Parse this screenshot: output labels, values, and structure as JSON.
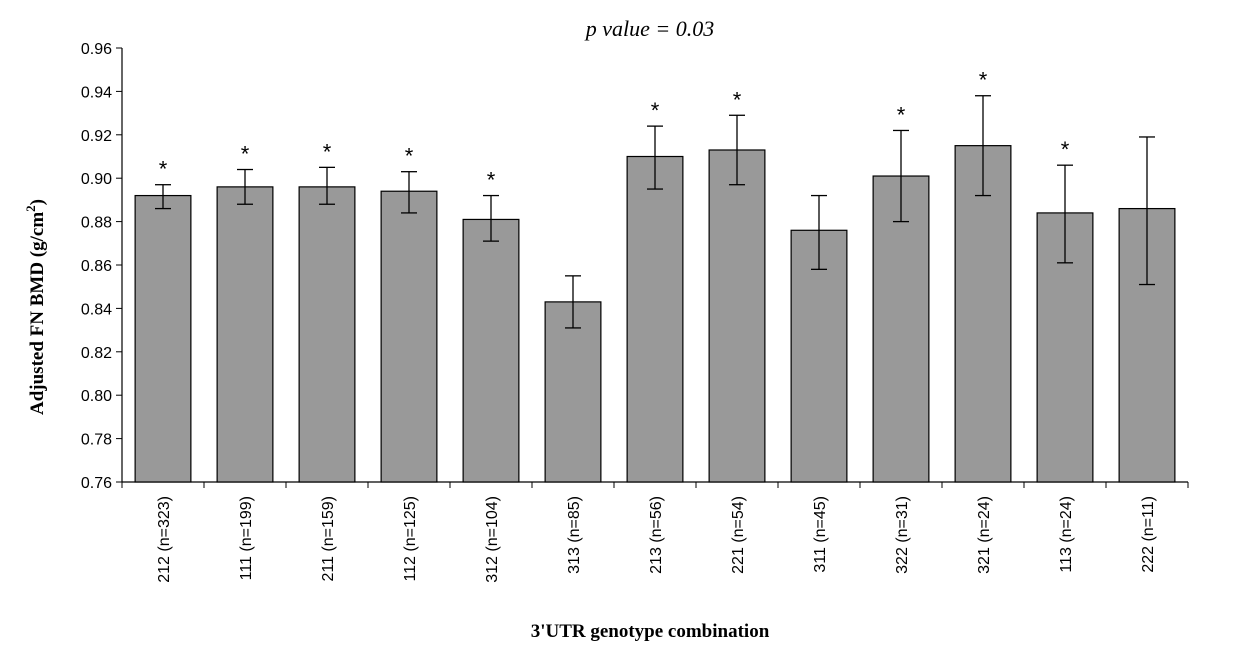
{
  "chart_data": {
    "type": "bar",
    "title": "p value = 0.03",
    "xlabel": "3'UTR genotype combination",
    "ylabel": "Adjusted FN BMD (g/cm",
    "ylabel_sup": "2",
    "ylabel_end": ")",
    "ylim": [
      0.76,
      0.96
    ],
    "yticks": [
      "0.76",
      "0.78",
      "0.80",
      "0.82",
      "0.84",
      "0.86",
      "0.88",
      "0.90",
      "0.92",
      "0.94",
      "0.96"
    ],
    "categories": [
      "212 (n=323)",
      "111 (n=199)",
      "211 (n=159)",
      "112 (n=125)",
      "312 (n=104)",
      "313 (n=85)",
      "213 (n=56)",
      "221 (n=54)",
      "311 (n=45)",
      "322 (n=31)",
      "321 (n=24)",
      "113 (n=24)",
      "222 (n=11)"
    ],
    "values": [
      0.892,
      0.896,
      0.896,
      0.894,
      0.881,
      0.843,
      0.91,
      0.913,
      0.876,
      0.901,
      0.915,
      0.884,
      0.886
    ],
    "error_low": [
      0.886,
      0.888,
      0.888,
      0.884,
      0.871,
      0.831,
      0.895,
      0.897,
      0.858,
      0.88,
      0.892,
      0.861,
      0.851
    ],
    "error_high": [
      0.897,
      0.904,
      0.905,
      0.903,
      0.892,
      0.855,
      0.924,
      0.929,
      0.892,
      0.922,
      0.938,
      0.906,
      0.919
    ],
    "significance_marker": "*",
    "significant": [
      true,
      true,
      true,
      true,
      true,
      false,
      true,
      true,
      false,
      true,
      true,
      true,
      false
    ],
    "bar_color": "#999999",
    "grid": false,
    "legend": "none"
  }
}
